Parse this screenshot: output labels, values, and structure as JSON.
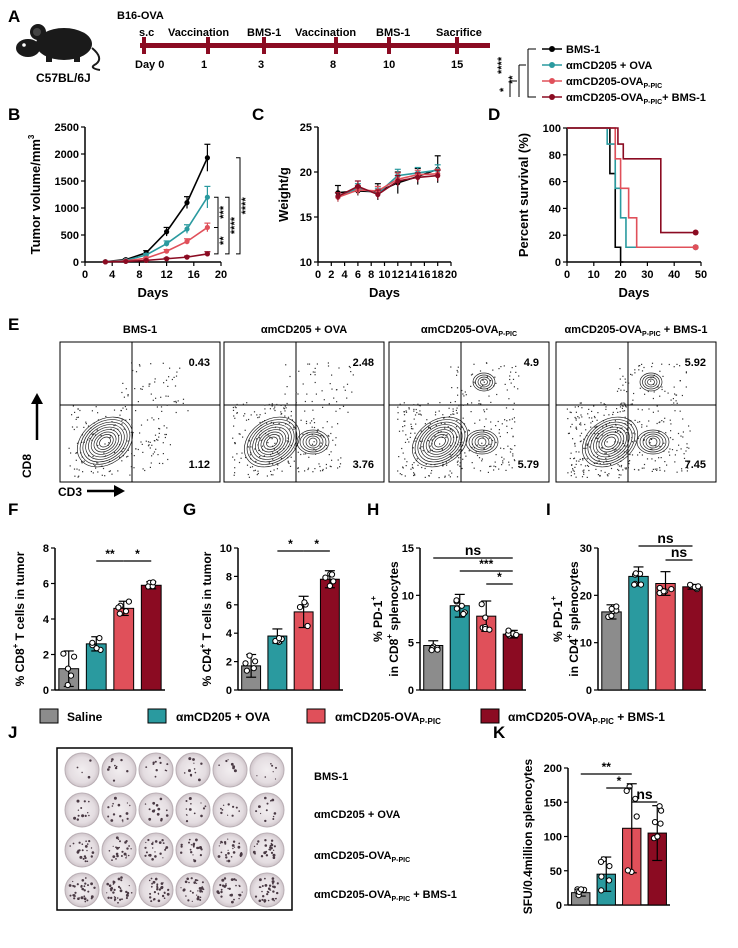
{
  "panels": {
    "A": "A",
    "B": "B",
    "C": "C",
    "D": "D",
    "E": "E",
    "F": "F",
    "G": "G",
    "H": "H",
    "I": "I",
    "J": "J",
    "K": "K"
  },
  "colors": {
    "bms": "#000000",
    "cd205ova": "#2a9a9f",
    "pic": "#e0505a",
    "combo": "#8b0b22",
    "saline": "#8c8c8c"
  },
  "panelA": {
    "mouse_label": "C57BL/6J",
    "day_prefix": "Day 0",
    "events": [
      {
        "label": "B16-OVA",
        "sub": "s.c",
        "day": "0"
      },
      {
        "label": "Vaccination",
        "day": "1"
      },
      {
        "label": "BMS-1",
        "day": "3"
      },
      {
        "label": "Vaccination",
        "day": "8"
      },
      {
        "label": "BMS-1",
        "day": "10"
      },
      {
        "label": "Sacrifice",
        "day": "15"
      }
    ],
    "legend": [
      "BMS-1",
      "αmCD205 + OVA",
      "αmCD205-OVA",
      "αmCD205-OVA",
      "+ BMS-1"
    ],
    "legend_sub": "P-PIC",
    "sig": [
      "****",
      "**",
      "*"
    ]
  },
  "chart_data": [
    {
      "panel": "B",
      "type": "line",
      "xlabel": "Days",
      "ylabel": "Tumor volume/mm",
      "ylabel_sup": "3",
      "xlim": [
        0,
        20
      ],
      "ylim": [
        0,
        2500
      ],
      "xticks": [
        "0",
        "4",
        "8",
        "12",
        "16",
        "20"
      ],
      "yticks": [
        "0",
        "500",
        "1000",
        "1500",
        "2000",
        "2500"
      ],
      "x": [
        3,
        6,
        9,
        12,
        15,
        18
      ],
      "series": [
        {
          "name": "BMS-1",
          "values": [
            5,
            45,
            170,
            560,
            1100,
            1930
          ],
          "err": [
            5,
            15,
            40,
            80,
            110,
            250
          ]
        },
        {
          "name": "αmCD205 + OVA",
          "values": [
            5,
            30,
            130,
            340,
            610,
            1200
          ],
          "err": [
            5,
            10,
            25,
            50,
            80,
            200
          ]
        },
        {
          "name": "αmCD205-OVA P-PIC",
          "values": [
            3,
            20,
            70,
            200,
            380,
            640
          ],
          "err": [
            3,
            8,
            15,
            30,
            50,
            80
          ]
        },
        {
          "name": "αmCD205-OVA P-PIC + BMS-1",
          "values": [
            2,
            10,
            30,
            60,
            90,
            150
          ],
          "err": [
            2,
            5,
            8,
            15,
            20,
            40
          ]
        }
      ],
      "sig": [
        "****",
        "****",
        "***",
        "**"
      ]
    },
    {
      "panel": "C",
      "type": "line",
      "xlabel": "Days",
      "ylabel": "Weight/g",
      "xlim": [
        0,
        20
      ],
      "ylim": [
        10,
        25
      ],
      "xticks": [
        "0",
        "2",
        "4",
        "6",
        "8",
        "10",
        "12",
        "14",
        "16",
        "18",
        "20"
      ],
      "yticks": [
        "10",
        "15",
        "20",
        "25"
      ],
      "x": [
        3,
        6,
        9,
        12,
        15,
        18
      ],
      "series": [
        {
          "name": "BMS-1",
          "values": [
            17.7,
            17.9,
            17.8,
            18.8,
            19.5,
            20.3
          ],
          "err": [
            0.8,
            0.5,
            0.9,
            1.2,
            0.9,
            1.5
          ]
        },
        {
          "name": "αmCD205 + OVA",
          "values": [
            17.2,
            18.2,
            17.6,
            19.6,
            19.9,
            20.2
          ],
          "err": [
            0.5,
            0.5,
            0.6,
            0.7,
            0.6,
            0.6
          ]
        },
        {
          "name": "αmCD205-OVA P-PIC",
          "values": [
            17.2,
            18.0,
            17.9,
            19.2,
            19.7,
            19.8
          ],
          "err": [
            0.5,
            0.5,
            0.5,
            0.7,
            0.5,
            0.5
          ]
        },
        {
          "name": "αmCD205-OVA P-PIC + BMS-1",
          "values": [
            17.3,
            18.4,
            17.5,
            19.0,
            19.4,
            19.6
          ],
          "err": [
            0.4,
            0.6,
            0.5,
            0.6,
            0.5,
            0.6
          ]
        }
      ]
    },
    {
      "panel": "D",
      "type": "line",
      "xlabel": "Days",
      "ylabel": "Percent survival (%)",
      "xlim": [
        0,
        50
      ],
      "ylim": [
        0,
        100
      ],
      "xticks": [
        "0",
        "10",
        "20",
        "30",
        "40",
        "50"
      ],
      "yticks": [
        "0",
        "20",
        "40",
        "60",
        "80",
        "100"
      ],
      "series": [
        {
          "name": "BMS-1",
          "steps": [
            [
              0,
              100
            ],
            [
              16,
              100
            ],
            [
              16,
              66
            ],
            [
              18,
              66
            ],
            [
              18,
              11
            ],
            [
              20,
              11
            ],
            [
              20,
              0
            ],
            [
              21,
              0
            ]
          ]
        },
        {
          "name": "αmCD205 + OVA",
          "steps": [
            [
              0,
              100
            ],
            [
              15,
              100
            ],
            [
              15,
              88
            ],
            [
              18,
              88
            ],
            [
              18,
              55
            ],
            [
              20,
              55
            ],
            [
              20,
              33
            ],
            [
              22,
              33
            ],
            [
              22,
              11
            ],
            [
              36,
              11
            ],
            [
              36,
              11
            ],
            [
              48,
              11
            ]
          ]
        },
        {
          "name": "αmCD205-OVA P-PIC",
          "steps": [
            [
              0,
              100
            ],
            [
              18,
              100
            ],
            [
              18,
              77
            ],
            [
              20,
              77
            ],
            [
              20,
              55
            ],
            [
              23,
              55
            ],
            [
              23,
              33
            ],
            [
              26,
              33
            ],
            [
              26,
              11
            ],
            [
              48,
              11
            ]
          ]
        },
        {
          "name": "αmCD205-OVA P-PIC + BMS-1",
          "steps": [
            [
              0,
              100
            ],
            [
              19,
              100
            ],
            [
              19,
              88
            ],
            [
              21,
              88
            ],
            [
              21,
              77
            ],
            [
              27,
              77
            ],
            [
              27,
              77
            ],
            [
              35,
              77
            ],
            [
              35,
              22
            ],
            [
              48,
              22
            ]
          ]
        }
      ]
    },
    {
      "panel": "F",
      "type": "bar",
      "ylabel": "% CD8",
      "ylabel_rest": " T cells in tumor",
      "ylim": [
        0,
        8
      ],
      "yticks": [
        "0",
        "2",
        "4",
        "6",
        "8"
      ],
      "categories": [
        "Saline",
        "αmCD205 + OVA",
        "αmCD205-OVA P-PIC",
        "αmCD205-OVA P-PIC + BMS-1"
      ],
      "values": [
        1.2,
        2.6,
        4.6,
        5.9
      ],
      "err": [
        1.0,
        0.4,
        0.4,
        0.2
      ],
      "sig": [
        {
          "from": 1,
          "to": 2,
          "text": "**"
        },
        {
          "from": 2,
          "to": 3,
          "text": "*"
        }
      ]
    },
    {
      "panel": "G",
      "type": "bar",
      "ylabel": "% CD4",
      "ylabel_rest": " T cells in tumor",
      "ylim": [
        0,
        10
      ],
      "yticks": [
        "0",
        "2",
        "4",
        "6",
        "8",
        "10"
      ],
      "categories": [
        "Saline",
        "αmCD205 + OVA",
        "αmCD205-OVA P-PIC",
        "αmCD205-OVA P-PIC + BMS-1"
      ],
      "values": [
        1.7,
        3.8,
        5.5,
        7.8
      ],
      "err": [
        0.8,
        0.5,
        1.1,
        0.6
      ],
      "sig": [
        {
          "from": 1,
          "to": 2,
          "text": "*"
        },
        {
          "from": 2,
          "to": 3,
          "text": "*"
        }
      ]
    },
    {
      "panel": "H",
      "type": "bar",
      "ylabel": "% PD-1",
      "ylabel2": "in CD8",
      "ylabel_rest": " splenocytes",
      "ylim": [
        0,
        15
      ],
      "yticks": [
        "0",
        "5",
        "10",
        "15"
      ],
      "categories": [
        "Saline",
        "αmCD205 + OVA",
        "αmCD205-OVA P-PIC",
        "αmCD205-OVA P-PIC + BMS-1"
      ],
      "values": [
        4.7,
        8.9,
        7.8,
        5.9
      ],
      "err": [
        0.5,
        1.2,
        1.6,
        0.4
      ],
      "sig": [
        {
          "from": 0,
          "to": 3,
          "text": "ns"
        },
        {
          "from": 1,
          "to": 3,
          "text": "***"
        },
        {
          "from": 2,
          "to": 3,
          "text": "*"
        }
      ]
    },
    {
      "panel": "I",
      "type": "bar",
      "ylabel": "% PD-1",
      "ylabel2": "in CD4",
      "ylabel_rest": " splenocytes",
      "ylim": [
        0,
        30
      ],
      "yticks": [
        "0",
        "10",
        "20",
        "30"
      ],
      "categories": [
        "Saline",
        "αmCD205 + OVA",
        "αmCD205-OVA P-PIC",
        "αmCD205-OVA P-PIC + BMS-1"
      ],
      "values": [
        16.5,
        24.0,
        22.5,
        21.8
      ],
      "err": [
        1.5,
        2.0,
        2.5,
        0.5
      ],
      "sig": [
        {
          "from": 1,
          "to": 3,
          "text": "ns"
        },
        {
          "from": 2,
          "to": 3,
          "text": "ns"
        }
      ]
    },
    {
      "panel": "K",
      "type": "bar",
      "ylabel": "SFU/0.4million splenocytes",
      "ylim": [
        0,
        200
      ],
      "yticks": [
        "0",
        "50",
        "100",
        "150",
        "200"
      ],
      "categories": [
        "BMS-1",
        "αmCD205 + OVA",
        "αmCD205-OVA P-PIC",
        "αmCD205-OVA P-PIC + BMS-1"
      ],
      "values": [
        18,
        45,
        112,
        105
      ],
      "err": [
        5,
        25,
        65,
        40
      ],
      "sig": [
        {
          "from": 0,
          "to": 2,
          "text": "**"
        },
        {
          "from": 1,
          "to": 2,
          "text": "*"
        },
        {
          "from": 2,
          "to": 3,
          "text": "ns"
        }
      ]
    }
  ],
  "panelE": {
    "titles": [
      "BMS-1",
      "αmCD205 + OVA",
      "αmCD205-OVA",
      "αmCD205-OVA"
    ],
    "title_sub": "P-PIC",
    "title_suffix": " + BMS-1",
    "upper": [
      "0.43",
      "2.48",
      "4.9",
      "5.92"
    ],
    "lower": [
      "1.12",
      "3.76",
      "5.79",
      "7.45"
    ],
    "yaxis": "CD8",
    "xaxis": "CD3"
  },
  "legend_bottom": {
    "saline": "Saline",
    "a": "αmCD205 + OVA",
    "b": "αmCD205-OVA",
    "c": "αmCD205-OVA",
    "c_suffix": " + BMS-1",
    "sub": "P-PIC"
  },
  "panelJ": {
    "rows": [
      "BMS-1",
      "αmCD205 + OVA",
      "αmCD205-OVA",
      "αmCD205-OVA"
    ],
    "row_sub": "P-PIC",
    "row_suffix": " + BMS-1"
  }
}
